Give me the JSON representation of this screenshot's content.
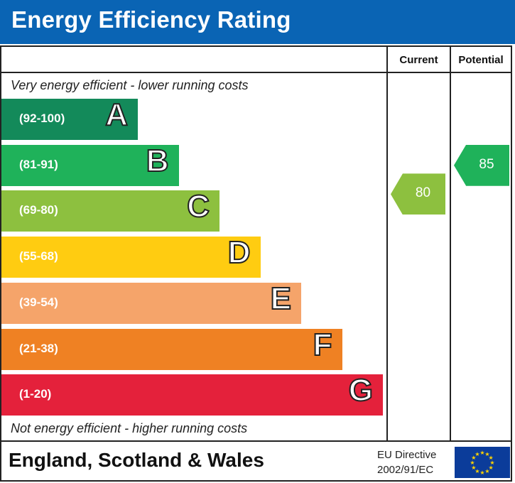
{
  "title": "Energy Efficiency Rating",
  "columns": {
    "current": "Current",
    "potential": "Potential"
  },
  "top_note": "Very energy efficient - lower running costs",
  "bottom_note": "Not energy efficient - higher running costs",
  "footer": {
    "region": "England, Scotland & Wales",
    "directive_line1": "EU Directive",
    "directive_line2": "2002/91/EC",
    "flag_icon": "eu-flag-icon"
  },
  "chart_data": {
    "type": "bar",
    "categories": [
      "A",
      "B",
      "C",
      "D",
      "E",
      "F",
      "G"
    ],
    "ranges": [
      "(92-100)",
      "(81-91)",
      "(69-80)",
      "(55-68)",
      "(39-54)",
      "(21-38)",
      "(1-20)"
    ],
    "colors": [
      "#138a5a",
      "#1fb25a",
      "#8dc03f",
      "#ffcc11",
      "#f5a46a",
      "#ef8123",
      "#e4213b"
    ],
    "current": {
      "value": 80,
      "band": "C",
      "color": "#8dc03f"
    },
    "potential": {
      "value": 85,
      "band": "B",
      "color": "#1fb25a"
    }
  }
}
